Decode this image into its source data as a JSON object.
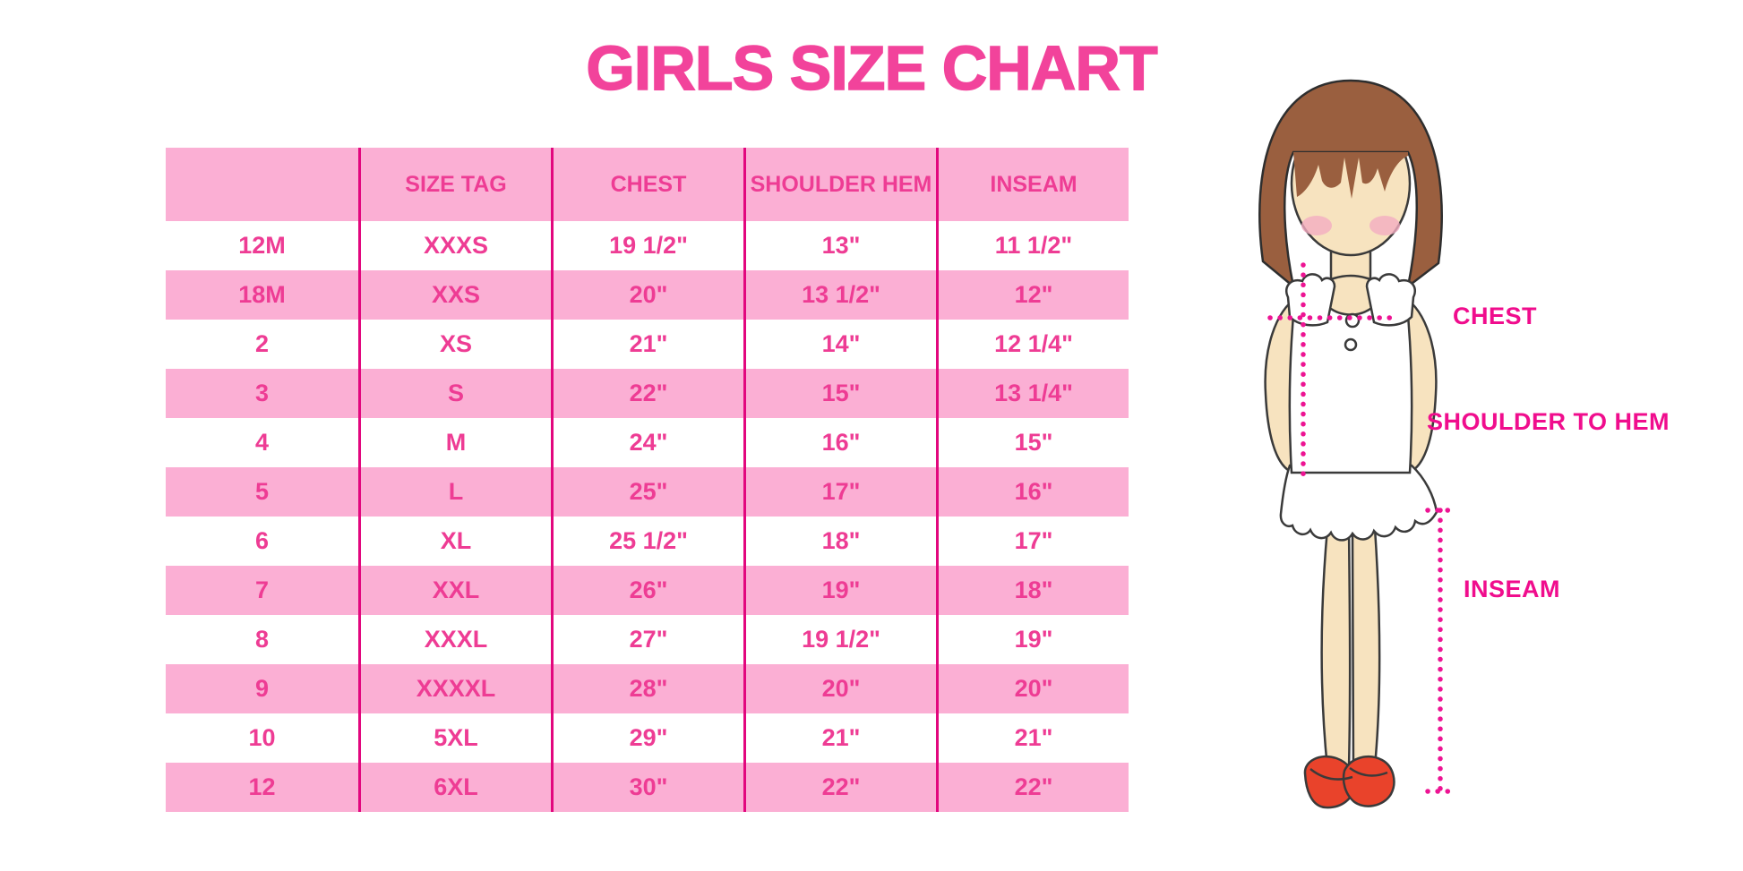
{
  "title": "GIRLS SIZE CHART",
  "chart_data": {
    "type": "table",
    "headers": [
      "",
      "SIZE TAG",
      "CHEST",
      "SHOULDER HEM",
      "INSEAM"
    ],
    "rows": [
      [
        "12M",
        "XXXS",
        "19 1/2\"",
        "13\"",
        "11 1/2\""
      ],
      [
        "18M",
        "XXS",
        "20\"",
        "13 1/2\"",
        "12\""
      ],
      [
        "2",
        "XS",
        "21\"",
        "14\"",
        "12 1/4\""
      ],
      [
        "3",
        "S",
        "22\"",
        "15\"",
        "13 1/4\""
      ],
      [
        "4",
        "M",
        "24\"",
        "16\"",
        "15\""
      ],
      [
        "5",
        "L",
        "25\"",
        "17\"",
        "16\""
      ],
      [
        "6",
        "XL",
        "25 1/2\"",
        "18\"",
        "17\""
      ],
      [
        "7",
        "XXL",
        "26\"",
        "19\"",
        "18\""
      ],
      [
        "8",
        "XXXL",
        "27\"",
        "19 1/2\"",
        "19\""
      ],
      [
        "9",
        "XXXXL",
        "28\"",
        "20\"",
        "20\""
      ],
      [
        "10",
        "5XL",
        "29\"",
        "21\"",
        "21\""
      ],
      [
        "12",
        "6XL",
        "30\"",
        "22\"",
        "22\""
      ]
    ],
    "title": "GIRLS SIZE CHART",
    "layout": {
      "zebra_striping": true,
      "first_data_row": "white",
      "column_separators": true,
      "horizontal_lines": false
    }
  },
  "figure": {
    "labels": {
      "chest": "CHEST",
      "shoulder_to_hem": "SHOULDER TO HEM",
      "inseam": "INSEAM"
    }
  },
  "colors": {
    "title_pink": "#F2439B",
    "row_pink": "#FBAFD4",
    "cell_text_pink": "#EE3C94",
    "separator_magenta": "#E2077E",
    "label_magenta": "#F00D8D",
    "dotted_magenta": "#ED1493",
    "hair_brown": "#9A5F3F",
    "skin": "#F7E3BF",
    "cheek_pink": "#F2ACC2",
    "shoe_red": "#E9432B"
  }
}
